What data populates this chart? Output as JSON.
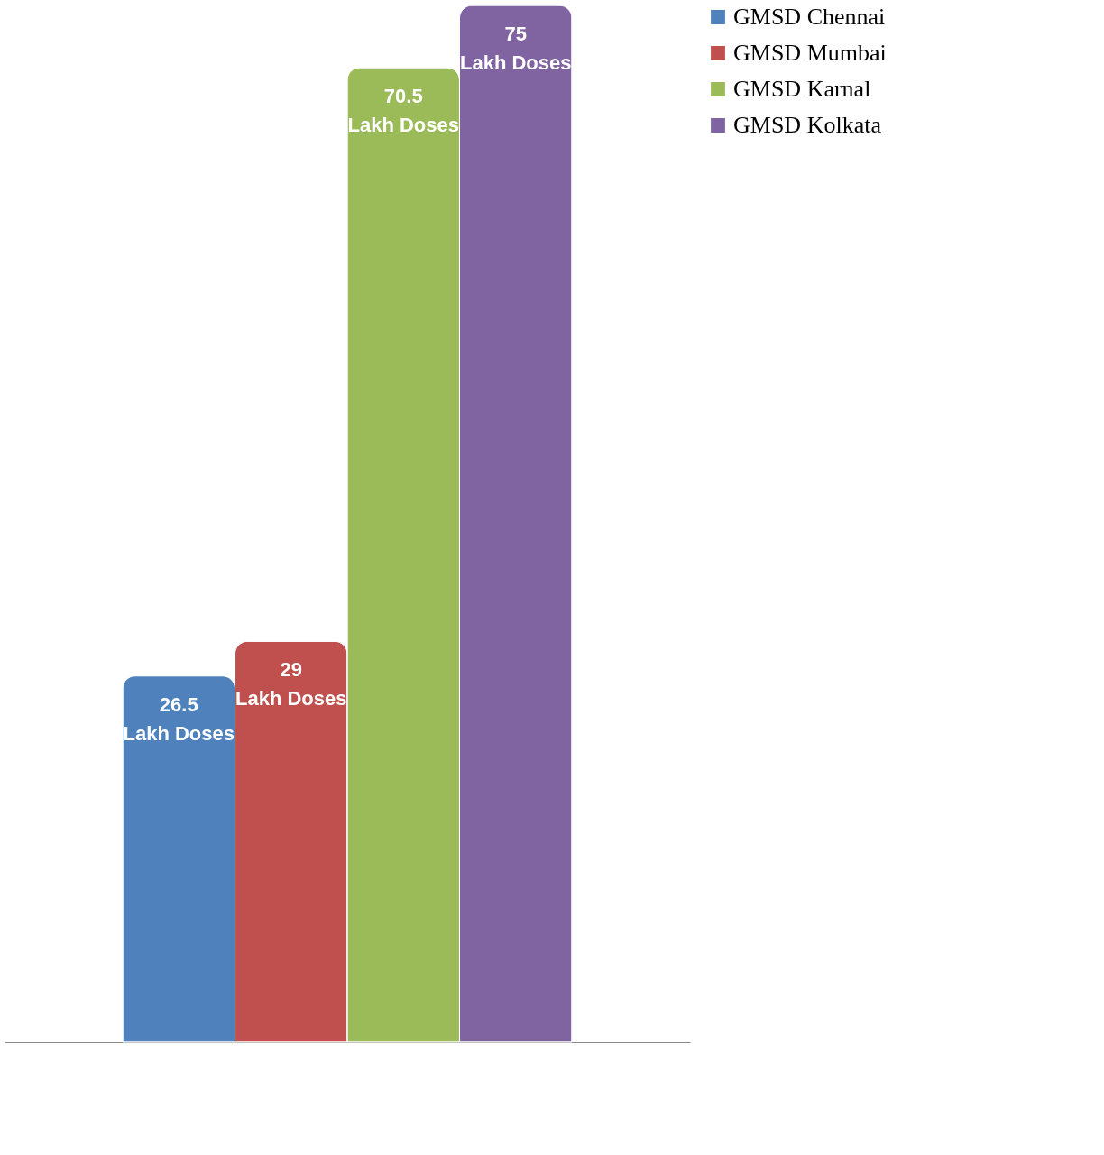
{
  "chart_data": {
    "type": "bar",
    "categories": [
      null
    ],
    "legend": "right",
    "grid": false,
    "series": [
      {
        "name": "GMSD Chennai",
        "color": "#4f81bd",
        "values": [
          26.5
        ],
        "value_labels": [
          "26.5\nLakh Doses"
        ]
      },
      {
        "name": "GMSD Mumbai",
        "color": "#c0504d",
        "values": [
          29
        ],
        "value_labels": [
          "29\nLakh Doses"
        ]
      },
      {
        "name": "GMSD Karnal",
        "color": "#9bbb59",
        "values": [
          70.5
        ],
        "value_labels": [
          "70.5\nLakh Doses"
        ]
      },
      {
        "name": "GMSD Kolkata",
        "color": "#8064a2",
        "values": [
          75
        ],
        "value_labels": [
          "75\nLakh Doses"
        ]
      }
    ]
  }
}
